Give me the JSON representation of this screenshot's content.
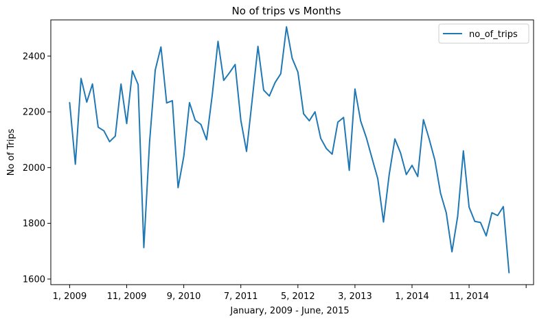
{
  "chart_data": {
    "type": "line",
    "title": "No of trips vs Months",
    "xlabel": "January, 2009 - June, 2015",
    "ylabel": "No of Trips",
    "ylim": [
      1580,
      2530
    ],
    "xlim": [
      -3.3,
      81.3
    ],
    "y_ticks": [
      1600,
      1800,
      2000,
      2200,
      2400
    ],
    "x_ticks": [
      {
        "x": 0,
        "label": "1, 2009"
      },
      {
        "x": 10,
        "label": "11, 2009"
      },
      {
        "x": 20,
        "label": "9, 2010"
      },
      {
        "x": 30,
        "label": "7, 2011"
      },
      {
        "x": 40,
        "label": "5, 2012"
      },
      {
        "x": 50,
        "label": "3, 2013"
      },
      {
        "x": 60,
        "label": "1, 2014"
      },
      {
        "x": 70,
        "label": "11, 2014"
      },
      {
        "x": 80,
        "label": ""
      }
    ],
    "grid": false,
    "legend_position": "top-right",
    "series": [
      {
        "name": "no_of_trips",
        "color": "#1f77b4",
        "values": [
          2233,
          2012,
          2320,
          2235,
          2300,
          2145,
          2132,
          2093,
          2113,
          2300,
          2158,
          2347,
          2298,
          1713,
          2090,
          2350,
          2433,
          2232,
          2240,
          1928,
          2040,
          2233,
          2170,
          2155,
          2100,
          2262,
          2453,
          2313,
          2340,
          2370,
          2170,
          2058,
          2245,
          2435,
          2278,
          2257,
          2305,
          2337,
          2505,
          2392,
          2343,
          2193,
          2168,
          2200,
          2105,
          2068,
          2048,
          2163,
          2180,
          1990,
          2282,
          2167,
          2107,
          2033,
          1960,
          1805,
          1975,
          2103,
          2052,
          1975,
          2008,
          1968,
          2172,
          2103,
          2027,
          1908,
          1838,
          1698,
          1825,
          2060,
          1858,
          1807,
          1803,
          1755,
          1838,
          1828,
          1860,
          1623
        ]
      }
    ]
  }
}
